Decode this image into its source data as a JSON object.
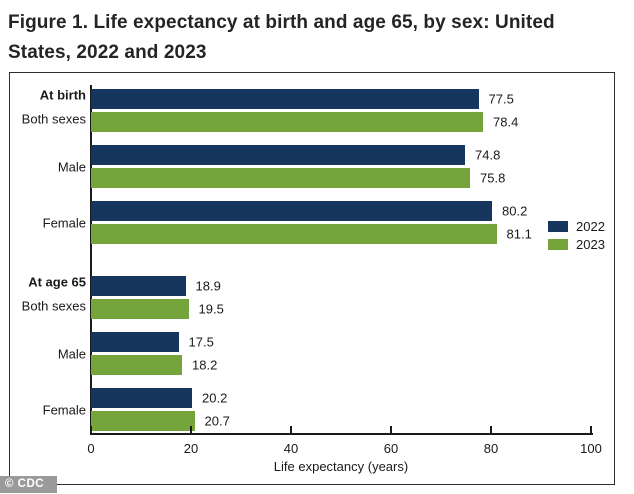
{
  "figure": {
    "title_line1": "Figure 1. Life expectancy at birth and age 65, by sex: United",
    "title_line2": "States, 2022 and 2023",
    "watermark": "© CDC"
  },
  "chart_data": {
    "type": "bar",
    "orientation": "horizontal",
    "title": "Figure 1. Life expectancy at birth and age 65, by sex: United States, 2022 and 2023",
    "sections": [
      {
        "header": "At birth",
        "categories": [
          "Both sexes",
          "Male",
          "Female"
        ]
      },
      {
        "header": "At age 65",
        "categories": [
          "Both sexes",
          "Male",
          "Female"
        ]
      }
    ],
    "series": [
      {
        "name": "2022",
        "color": "#17365d",
        "values": [
          77.5,
          74.8,
          80.2,
          18.9,
          17.5,
          20.2
        ]
      },
      {
        "name": "2023",
        "color": "#76a43c",
        "values": [
          78.4,
          75.8,
          81.1,
          19.5,
          18.2,
          20.7
        ]
      }
    ],
    "value_labels": [
      "77.5",
      "78.4",
      "74.8",
      "75.8",
      "80.2",
      "81.1",
      "18.9",
      "19.5",
      "17.5",
      "18.2",
      "20.2",
      "20.7"
    ],
    "xlabel": "Life expectancy (years)",
    "xlim": [
      0,
      100
    ],
    "xticks": [
      0,
      20,
      40,
      60,
      80,
      100
    ],
    "grid": false,
    "legend_position": "right-middle",
    "colors": {
      "bar_2022": "#17365d",
      "bar_2023": "#76a43c",
      "axis": "#1a1a1a",
      "watermark_bg": "#9a9a9a"
    }
  }
}
